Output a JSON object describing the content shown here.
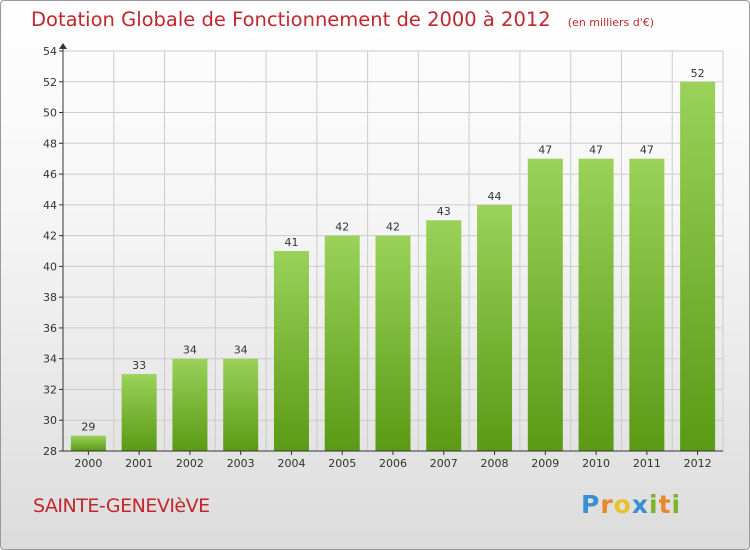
{
  "title": "Dotation Globale de Fonctionnement de 2000 à 2012",
  "unit_note": "(en milliers d'€)",
  "commune": "SAINTE-GENEVIèVE",
  "brand": {
    "letters": [
      "P",
      "r",
      "o",
      "x",
      "i",
      "t",
      "i"
    ],
    "colors": [
      "#3b8fd1",
      "#e8862a",
      "#e8c22a",
      "#3b8fd1",
      "#7ab52a",
      "#e8862a",
      "#7ab52a"
    ]
  },
  "colors": {
    "title": "#c1272d",
    "bar_top": "#9ad25a",
    "bar_bottom": "#5a9a14",
    "axis": "#333333",
    "grid": "#cccccc"
  },
  "chart_data": {
    "type": "bar",
    "categories": [
      "2000",
      "2001",
      "2002",
      "2003",
      "2004",
      "2005",
      "2006",
      "2007",
      "2008",
      "2009",
      "2010",
      "2011",
      "2012"
    ],
    "values": [
      29,
      33,
      34,
      34,
      41,
      42,
      42,
      43,
      44,
      47,
      47,
      47,
      52
    ],
    "ylim": [
      28,
      54
    ],
    "yticks": [
      28,
      30,
      32,
      34,
      36,
      38,
      40,
      42,
      44,
      46,
      48,
      50,
      52,
      54
    ],
    "grid": true,
    "legend": "none"
  }
}
